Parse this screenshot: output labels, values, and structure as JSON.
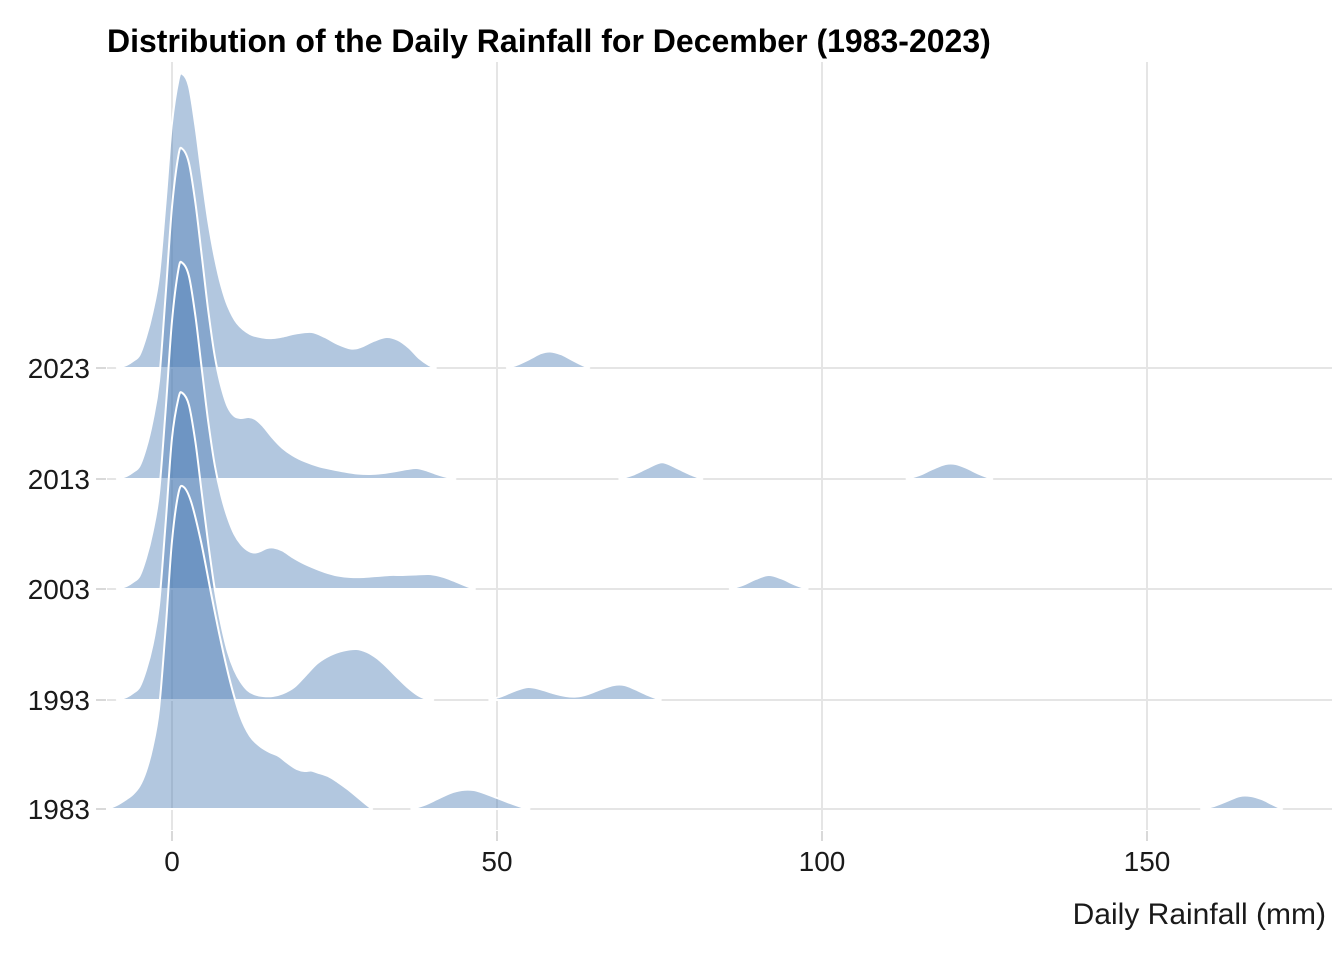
{
  "chart_data": {
    "type": "area",
    "subtype": "ridgeline",
    "title": "Distribution of the Daily Rainfall for December (1983-2023)",
    "xlabel": "Daily Rainfall (mm)",
    "ylabel": "",
    "x_ticks": [
      0,
      50,
      100,
      150
    ],
    "x_range": [
      -10,
      178
    ],
    "grid": true,
    "legend": false,
    "years_top_to_bottom": [
      "2023",
      "2013",
      "2003",
      "1993",
      "1983"
    ],
    "density_units": "relative density height (px of original render)",
    "colors": {
      "fill_base": "#507FB6",
      "fill_opacity": 0.44,
      "outline": "#FFFFFF",
      "gridline": "#E5E5E5",
      "tick": "#D9D9D9",
      "text": "#1A1A1A",
      "title_text": "#000000"
    },
    "series": [
      {
        "name": "2023",
        "paths": [
          [
            [
              -8.5,
              0
            ],
            [
              -7,
              3
            ],
            [
              -6,
              7
            ],
            [
              -5,
              13
            ],
            [
              -4,
              31
            ],
            [
              -3,
              56
            ],
            [
              -2,
              92
            ],
            [
              -1,
              165
            ],
            [
              0,
              245
            ],
            [
              1,
              288
            ],
            [
              1.6,
              294
            ],
            [
              2.6,
              282
            ],
            [
              3.6,
              242
            ],
            [
              4.6,
              192
            ],
            [
              5.6,
              146
            ],
            [
              6.6,
              110
            ],
            [
              7.6,
              82
            ],
            [
              8.6,
              62
            ],
            [
              10,
              45
            ],
            [
              12,
              34
            ],
            [
              14,
              30.5
            ],
            [
              15.5,
              30
            ],
            [
              17,
              31.5
            ],
            [
              19,
              34.5
            ],
            [
              21.5,
              36
            ],
            [
              23.5,
              31
            ],
            [
              25.5,
              24
            ],
            [
              27.5,
              19.5
            ],
            [
              29,
              21
            ],
            [
              31,
              27
            ],
            [
              33,
              31
            ],
            [
              34.8,
              28
            ],
            [
              36.5,
              20
            ],
            [
              38,
              10
            ],
            [
              39.5,
              3
            ],
            [
              40.6,
              0
            ]
          ],
          [
            [
              51.5,
              0
            ],
            [
              53,
              3
            ],
            [
              55,
              9
            ],
            [
              56.8,
              15
            ],
            [
              58.2,
              16.5
            ],
            [
              59.8,
              14
            ],
            [
              61.3,
              9
            ],
            [
              62.8,
              4
            ],
            [
              64.2,
              0
            ]
          ]
        ]
      },
      {
        "name": "2013",
        "paths": [
          [
            [
              -8.5,
              0
            ],
            [
              -7,
              3
            ],
            [
              -6,
              7
            ],
            [
              -5,
              13
            ],
            [
              -4,
              31
            ],
            [
              -3,
              58
            ],
            [
              -2,
              98
            ],
            [
              -1,
              182
            ],
            [
              0,
              272
            ],
            [
              1,
              324
            ],
            [
              1.6,
              330
            ],
            [
              2.6,
              316
            ],
            [
              3.6,
              276
            ],
            [
              4.6,
              222
            ],
            [
              5.6,
              167
            ],
            [
              6.6,
              122
            ],
            [
              7.6,
              92
            ],
            [
              8.6,
              72
            ],
            [
              9.6,
              63
            ],
            [
              10.6,
              61
            ],
            [
              11.8,
              62
            ],
            [
              12.8,
              60
            ],
            [
              14,
              53
            ],
            [
              15.5,
              41
            ],
            [
              17,
              31
            ],
            [
              18.5,
              24
            ],
            [
              20.5,
              17.5
            ],
            [
              22.5,
              13
            ],
            [
              24.5,
              10
            ],
            [
              26.5,
              7.5
            ],
            [
              28.5,
              5.5
            ],
            [
              30.5,
              5
            ],
            [
              32.5,
              6
            ],
            [
              34.5,
              8
            ],
            [
              36.2,
              10
            ],
            [
              37.6,
              11
            ],
            [
              39,
              9
            ],
            [
              40.5,
              5.5
            ],
            [
              42,
              2.5
            ],
            [
              43.6,
              0
            ]
          ],
          [
            [
              68.8,
              0
            ],
            [
              70.8,
              4
            ],
            [
              72.8,
              10
            ],
            [
              74.8,
              16
            ],
            [
              76,
              16
            ],
            [
              78,
              10
            ],
            [
              80,
              4
            ],
            [
              81.6,
              0
            ]
          ],
          [
            [
              113,
              0
            ],
            [
              115,
              4
            ],
            [
              117,
              10
            ],
            [
              119,
              15
            ],
            [
              120.6,
              15
            ],
            [
              122.3,
              11
            ],
            [
              124.2,
              5
            ],
            [
              126.2,
              0
            ]
          ]
        ]
      },
      {
        "name": "2003",
        "paths": [
          [
            [
              -8.5,
              0
            ],
            [
              -7,
              3
            ],
            [
              -6,
              7
            ],
            [
              -5,
              13
            ],
            [
              -4,
              31
            ],
            [
              -3,
              57
            ],
            [
              -2,
              96
            ],
            [
              -1,
              177
            ],
            [
              0,
              268
            ],
            [
              1,
              320
            ],
            [
              1.6,
              326
            ],
            [
              2.6,
              313
            ],
            [
              3.6,
              273
            ],
            [
              4.6,
              219
            ],
            [
              5.6,
              166
            ],
            [
              6.6,
              123
            ],
            [
              7.6,
              93
            ],
            [
              8.6,
              71
            ],
            [
              9.6,
              55
            ],
            [
              10.6,
              45
            ],
            [
              11.6,
              39
            ],
            [
              12.6,
              36.5
            ],
            [
              13.6,
              38
            ],
            [
              14.6,
              41
            ],
            [
              15.6,
              41.5
            ],
            [
              17,
              38.5
            ],
            [
              18.5,
              32
            ],
            [
              20,
              26.5
            ],
            [
              21.5,
              22
            ],
            [
              23.5,
              17
            ],
            [
              25.5,
              13.5
            ],
            [
              27.5,
              12
            ],
            [
              29.5,
              12
            ],
            [
              31.5,
              13
            ],
            [
              33.5,
              14
            ],
            [
              35.5,
              14
            ],
            [
              37.5,
              14.5
            ],
            [
              39.5,
              15
            ],
            [
              41,
              13.5
            ],
            [
              42.5,
              10.5
            ],
            [
              44,
              6.5
            ],
            [
              45.3,
              3
            ],
            [
              46.6,
              0
            ]
          ],
          [
            [
              85.8,
              0
            ],
            [
              87.8,
              4
            ],
            [
              89.8,
              10
            ],
            [
              91.8,
              14
            ],
            [
              93.8,
              10.5
            ],
            [
              95.8,
              4.5
            ],
            [
              97.8,
              0
            ]
          ]
        ]
      },
      {
        "name": "1993",
        "paths": [
          [
            [
              -8.5,
              0
            ],
            [
              -7,
              3
            ],
            [
              -6,
              7
            ],
            [
              -5,
              13
            ],
            [
              -4,
              30
            ],
            [
              -3,
              55
            ],
            [
              -2,
              95
            ],
            [
              -1,
              175
            ],
            [
              0,
              262
            ],
            [
              1,
              302
            ],
            [
              1.6,
              307
            ],
            [
              2.6,
              295
            ],
            [
              3.6,
              258
            ],
            [
              4.6,
              206
            ],
            [
              5.6,
              155
            ],
            [
              6.6,
              110
            ],
            [
              7.6,
              75
            ],
            [
              8.6,
              48
            ],
            [
              9.6,
              30
            ],
            [
              10.6,
              18
            ],
            [
              11.6,
              10
            ],
            [
              12.6,
              6
            ],
            [
              14,
              4
            ],
            [
              15.5,
              4
            ],
            [
              17,
              6.5
            ],
            [
              18.8,
              13
            ],
            [
              20.6,
              25
            ],
            [
              22.4,
              37
            ],
            [
              24.4,
              45
            ],
            [
              26.4,
              49.5
            ],
            [
              28.4,
              51
            ],
            [
              30,
              48
            ],
            [
              31.5,
              42
            ],
            [
              33,
              33.5
            ],
            [
              34.6,
              23
            ],
            [
              36.2,
              13
            ],
            [
              37.8,
              5
            ],
            [
              39.2,
              1
            ],
            [
              40.2,
              0
            ]
          ],
          [
            [
              48.8,
              0
            ],
            [
              50.8,
              4
            ],
            [
              52.8,
              9.5
            ],
            [
              54.8,
              13
            ],
            [
              56.6,
              11
            ],
            [
              58.6,
              7
            ],
            [
              60.6,
              4
            ],
            [
              62.2,
              3.5
            ],
            [
              64,
              6
            ],
            [
              66,
              11
            ],
            [
              68,
              15
            ],
            [
              69.6,
              15
            ],
            [
              71.2,
              11
            ],
            [
              73.2,
              5
            ],
            [
              75.2,
              0
            ]
          ]
        ]
      },
      {
        "name": "1983",
        "paths": [
          [
            [
              -10,
              0
            ],
            [
              -8.5,
              4
            ],
            [
              -7,
              10
            ],
            [
              -6,
              15
            ],
            [
              -5,
              23
            ],
            [
              -4,
              38
            ],
            [
              -3,
              62
            ],
            [
              -2,
              100
            ],
            [
              -1,
              178
            ],
            [
              0,
              268
            ],
            [
              1,
              316
            ],
            [
              1.8,
              322
            ],
            [
              3,
              306
            ],
            [
              4.5,
              266
            ],
            [
              6,
              216
            ],
            [
              7.5,
              168
            ],
            [
              9,
              126
            ],
            [
              10.5,
              93
            ],
            [
              12,
              73
            ],
            [
              13.5,
              63
            ],
            [
              15,
              57
            ],
            [
              16.4,
              53
            ],
            [
              17.8,
              46
            ],
            [
              19.2,
              40
            ],
            [
              20.4,
              38
            ],
            [
              21.4,
              38.5
            ],
            [
              22.4,
              36.5
            ],
            [
              24,
              33
            ],
            [
              25.5,
              27
            ],
            [
              27,
              20
            ],
            [
              28.5,
              12
            ],
            [
              29.8,
              5
            ],
            [
              30.8,
              0
            ]
          ],
          [
            [
              36.8,
              0
            ],
            [
              38.8,
              4
            ],
            [
              40.8,
              10
            ],
            [
              42.8,
              16
            ],
            [
              44.6,
              19
            ],
            [
              46.4,
              19
            ],
            [
              48,
              16
            ],
            [
              50,
              11
            ],
            [
              52,
              6
            ],
            [
              54,
              1.5
            ],
            [
              55,
              0
            ]
          ],
          [
            [
              158.3,
              0
            ],
            [
              160.3,
              3
            ],
            [
              162.3,
              8
            ],
            [
              164.3,
              13
            ],
            [
              166,
              13
            ],
            [
              167.6,
              10
            ],
            [
              169.2,
              5
            ],
            [
              170.8,
              0
            ]
          ]
        ]
      }
    ]
  }
}
